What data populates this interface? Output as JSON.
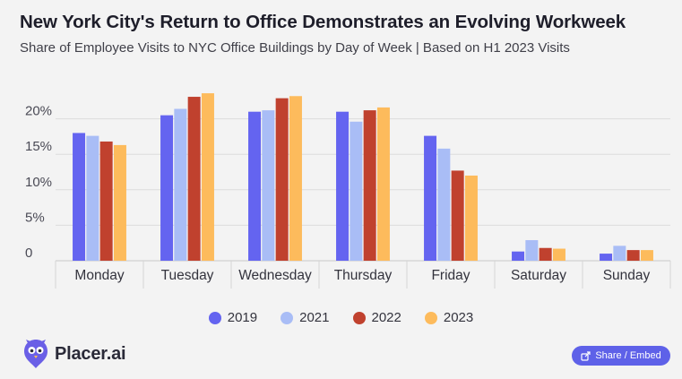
{
  "chart_data": {
    "type": "bar",
    "title": "New York City's Return to Office Demonstrates an Evolving Workweek",
    "subtitle": "Share of Employee Visits to NYC Office Buildings by Day of Week | Based on H1 2023 Visits",
    "categories": [
      "Monday",
      "Tuesday",
      "Wednesday",
      "Thursday",
      "Friday",
      "Saturday",
      "Sunday"
    ],
    "series": [
      {
        "name": "2019",
        "color": "#6464f0",
        "values": [
          18.0,
          20.5,
          21.0,
          21.0,
          17.6,
          1.3,
          1.0
        ]
      },
      {
        "name": "2021",
        "color": "#a9bdf6",
        "values": [
          17.6,
          21.4,
          21.2,
          19.6,
          15.8,
          2.9,
          2.1
        ]
      },
      {
        "name": "2022",
        "color": "#c0412e",
        "values": [
          16.8,
          23.1,
          22.9,
          21.2,
          12.7,
          1.8,
          1.5
        ]
      },
      {
        "name": "2023",
        "color": "#fdbb5c",
        "values": [
          16.3,
          23.6,
          23.2,
          21.6,
          12.0,
          1.7,
          1.5
        ]
      }
    ],
    "yticks": [
      0,
      5,
      10,
      15,
      20
    ],
    "ytick_labels": [
      "0",
      "5%",
      "10%",
      "15%",
      "20%"
    ],
    "ylim": [
      0,
      25
    ],
    "xlabel": "",
    "ylabel": "",
    "grid": true,
    "legend_position": "bottom-center"
  },
  "brand": {
    "name": "Placer.ai"
  },
  "share_button": {
    "label": "Share / Embed"
  },
  "icons": {
    "share": "share-icon",
    "logo": "placer-logo-icon"
  }
}
